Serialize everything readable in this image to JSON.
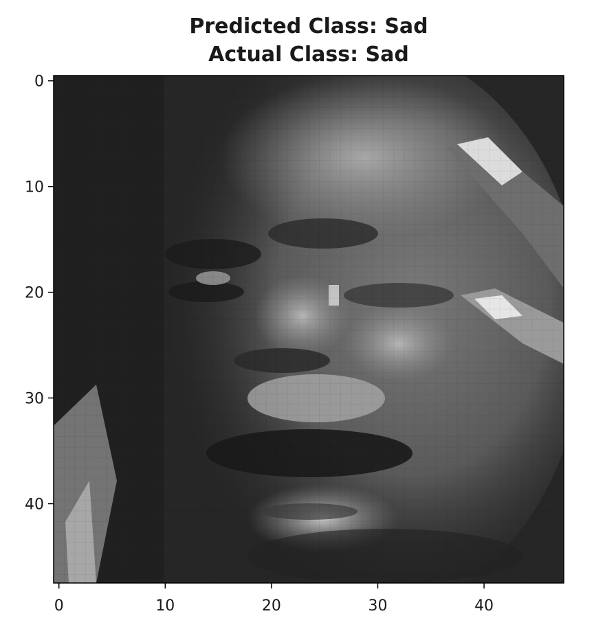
{
  "figure": {
    "title_line_1": "Predicted Class: Sad",
    "title_line_2": "Actual Class: Sad"
  },
  "image": {
    "subject": "grayscale face",
    "colormap": "gray",
    "grid_size": [
      48,
      48
    ]
  },
  "axes": {
    "x_ticks": [
      "0",
      "10",
      "20",
      "30",
      "40"
    ],
    "y_ticks": [
      "0",
      "10",
      "20",
      "30",
      "40"
    ],
    "x_range": [
      -0.5,
      47.5
    ],
    "y_range": [
      47.5,
      -0.5
    ]
  }
}
